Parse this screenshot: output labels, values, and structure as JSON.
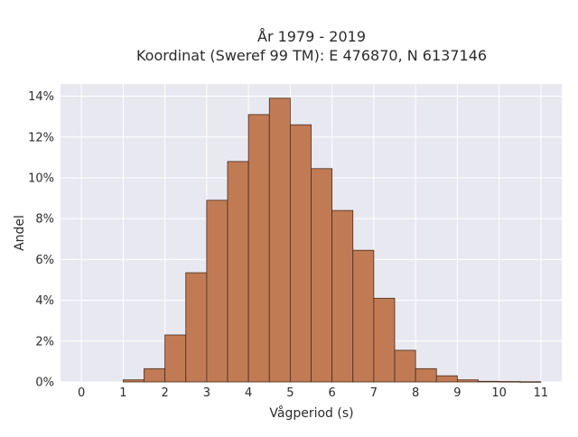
{
  "chart_data": {
    "type": "bar",
    "title_line1": "År 1979 - 2019",
    "title_line2": "Koordinat (Sweref 99 TM): E 476870, N 6137146",
    "xlabel": "Vågperiod (s)",
    "ylabel": "Andel",
    "bin_width": 0.5,
    "bins": [
      {
        "start": 1.0,
        "value": 0.1
      },
      {
        "start": 1.5,
        "value": 0.65
      },
      {
        "start": 2.0,
        "value": 2.3
      },
      {
        "start": 2.5,
        "value": 5.35
      },
      {
        "start": 3.0,
        "value": 8.9
      },
      {
        "start": 3.5,
        "value": 10.8
      },
      {
        "start": 4.0,
        "value": 13.1
      },
      {
        "start": 4.5,
        "value": 13.9
      },
      {
        "start": 5.0,
        "value": 12.6
      },
      {
        "start": 5.5,
        "value": 10.45
      },
      {
        "start": 6.0,
        "value": 8.4
      },
      {
        "start": 6.5,
        "value": 6.45
      },
      {
        "start": 7.0,
        "value": 4.1
      },
      {
        "start": 7.5,
        "value": 1.55
      },
      {
        "start": 8.0,
        "value": 0.65
      },
      {
        "start": 8.5,
        "value": 0.3
      },
      {
        "start": 9.0,
        "value": 0.1
      },
      {
        "start": 9.5,
        "value": 0.03
      },
      {
        "start": 10.0,
        "value": 0.02
      },
      {
        "start": 10.5,
        "value": 0.01
      }
    ],
    "xlim": [
      -0.5,
      11.5
    ],
    "ylim": [
      0,
      14.6
    ],
    "x_ticks": [
      0,
      1,
      2,
      3,
      4,
      5,
      6,
      7,
      8,
      9,
      10,
      11
    ],
    "y_ticks": [
      0,
      2,
      4,
      6,
      8,
      10,
      12,
      14
    ],
    "y_tick_labels": [
      "0%",
      "2%",
      "4%",
      "6%",
      "8%",
      "10%",
      "12%",
      "14%"
    ],
    "grid": true,
    "colors": {
      "bar_fill": "#c07b55",
      "bar_stroke": "#4a2a18",
      "plot_bg": "#e8e8f0",
      "grid": "#ffffff"
    }
  }
}
